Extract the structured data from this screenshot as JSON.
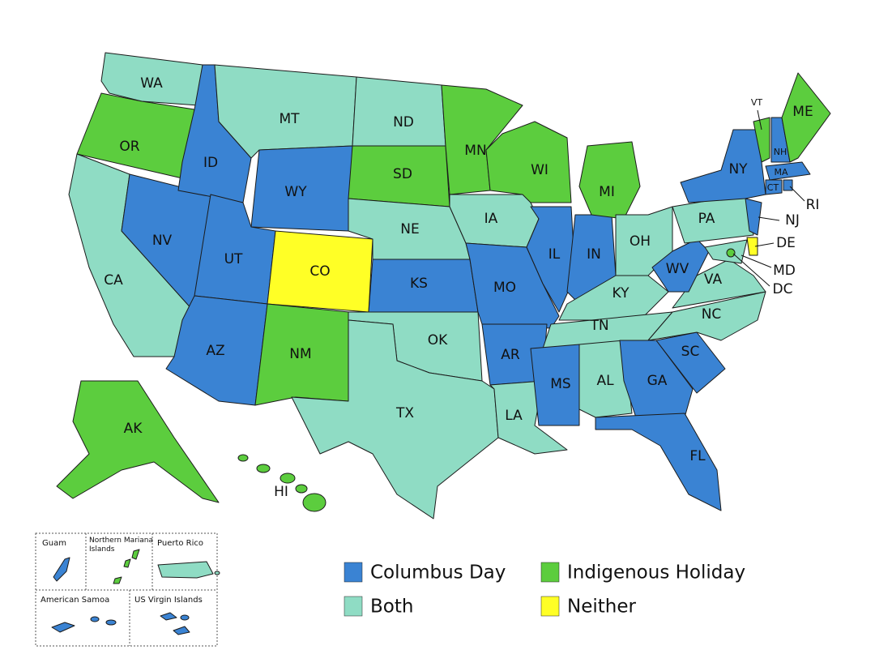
{
  "legend": [
    {
      "label": "Columbus Day",
      "color": "#3a83d3"
    },
    {
      "label": "Indigenous Holiday",
      "color": "#5ccd3e"
    },
    {
      "label": "Both",
      "color": "#8fdcc4"
    },
    {
      "label": "Neither",
      "color": "#ffff26"
    }
  ],
  "states": [
    {
      "label": "WA",
      "group": 2
    },
    {
      "label": "OR",
      "group": 1
    },
    {
      "label": "CA",
      "group": 2
    },
    {
      "label": "NV",
      "group": 0
    },
    {
      "label": "ID",
      "group": 0
    },
    {
      "label": "MT",
      "group": 2
    },
    {
      "label": "WY",
      "group": 0
    },
    {
      "label": "UT",
      "group": 0
    },
    {
      "label": "AZ",
      "group": 0
    },
    {
      "label": "CO",
      "group": 3
    },
    {
      "label": "NM",
      "group": 1
    },
    {
      "label": "ND",
      "group": 2
    },
    {
      "label": "SD",
      "group": 1
    },
    {
      "label": "NE",
      "group": 2
    },
    {
      "label": "KS",
      "group": 0
    },
    {
      "label": "OK",
      "group": 2
    },
    {
      "label": "TX",
      "group": 2
    },
    {
      "label": "MN",
      "group": 1
    },
    {
      "label": "IA",
      "group": 2
    },
    {
      "label": "MO",
      "group": 0
    },
    {
      "label": "AR",
      "group": 0
    },
    {
      "label": "LA",
      "group": 2
    },
    {
      "label": "WI",
      "group": 1
    },
    {
      "label": "IL",
      "group": 0
    },
    {
      "label": "IN",
      "group": 0
    },
    {
      "label": "MI",
      "group": 1
    },
    {
      "label": "OH",
      "group": 2
    },
    {
      "label": "KY",
      "group": 2
    },
    {
      "label": "TN",
      "group": 2
    },
    {
      "label": "MS",
      "group": 0
    },
    {
      "label": "AL",
      "group": 2
    },
    {
      "label": "GA",
      "group": 0
    },
    {
      "label": "FL",
      "group": 0
    },
    {
      "label": "SC",
      "group": 0
    },
    {
      "label": "NC",
      "group": 2
    },
    {
      "label": "VA",
      "group": 2
    },
    {
      "label": "WV",
      "group": 0
    },
    {
      "label": "PA",
      "group": 2
    },
    {
      "label": "NY",
      "group": 0
    },
    {
      "label": "NJ",
      "group": 0
    },
    {
      "label": "DE",
      "group": 3
    },
    {
      "label": "MD",
      "group": 2
    },
    {
      "label": "VT",
      "group": 1
    },
    {
      "label": "NH",
      "group": 0
    },
    {
      "label": "ME",
      "group": 1
    },
    {
      "label": "MA",
      "group": 0
    },
    {
      "label": "CT",
      "group": 0
    },
    {
      "label": "RI",
      "group": 0
    },
    {
      "label": "AK",
      "group": 1
    },
    {
      "label": "HI",
      "group": 1
    },
    {
      "label": "DC",
      "group": 1
    }
  ],
  "territories": [
    {
      "label": "Guam",
      "group": 0
    },
    {
      "label": "Northern Mariana Islands",
      "group": 1
    },
    {
      "label": "Puerto Rico",
      "group": 2
    },
    {
      "label": "American Samoa",
      "group": 0
    },
    {
      "label": "US Virgin Islands",
      "group": 0
    }
  ]
}
